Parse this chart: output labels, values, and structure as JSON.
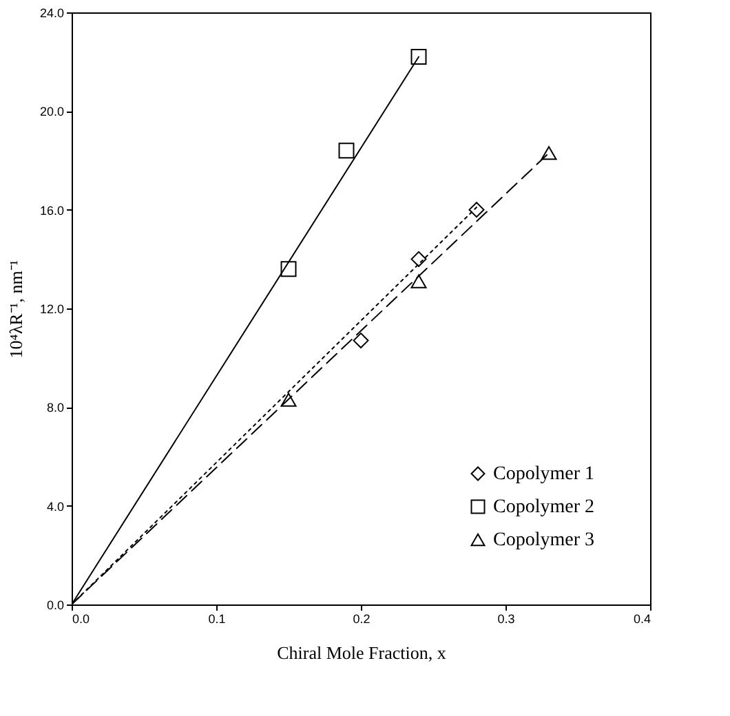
{
  "chart_data": {
    "type": "scatter",
    "xlabel": "Chiral Mole Fraction, x",
    "ylabel": "10⁴λR⁻¹, nm⁻¹",
    "xlim": [
      0,
      0.4
    ],
    "ylim": [
      0,
      24
    ],
    "xticks": [
      {
        "value": 0,
        "label": "0.0"
      },
      0.1,
      0.2,
      0.3,
      0.4
    ],
    "yticks": [
      {
        "value": 0,
        "label": "0.0"
      },
      {
        "value": 4,
        "label": "4.0"
      },
      {
        "value": 8,
        "label": "8.0"
      },
      {
        "value": 12,
        "label": "12.0"
      },
      {
        "value": 16,
        "label": "16.0"
      },
      {
        "value": 20,
        "label": "20.0"
      },
      {
        "value": 24,
        "label": "24.0"
      }
    ],
    "grid": false,
    "legend": "bottom right",
    "series": [
      {
        "name": "Copolymer 1",
        "marker": "diamond",
        "color": "#000000",
        "x": [
          0.2,
          0.24,
          0.28
        ],
        "values": [
          10.7,
          14.0,
          16.0
        ]
      },
      {
        "name": "Copolymer 2",
        "marker": "square",
        "color": "#000000",
        "x": [
          0.15,
          0.19,
          0.24
        ],
        "values": [
          13.6,
          18.4,
          22.2
        ]
      },
      {
        "name": "Copolymer 3",
        "marker": "triangle",
        "color": "#000000",
        "x": [
          0.15,
          0.24,
          0.33
        ],
        "values": [
          8.3,
          13.1,
          18.3
        ]
      },
      {
        "type": "line",
        "line_style": "dotted",
        "color": "#000000",
        "x": [
          0,
          0.28
        ],
        "values": [
          0,
          16.1
        ]
      },
      {
        "type": "line",
        "line_style": "solid",
        "color": "#000000",
        "x": [
          0,
          0.24
        ],
        "values": [
          0,
          22.2
        ]
      },
      {
        "type": "line",
        "line_style": "dashed",
        "color": "#000000",
        "x": [
          0,
          0.33
        ],
        "values": [
          0,
          18.3
        ]
      }
    ]
  }
}
